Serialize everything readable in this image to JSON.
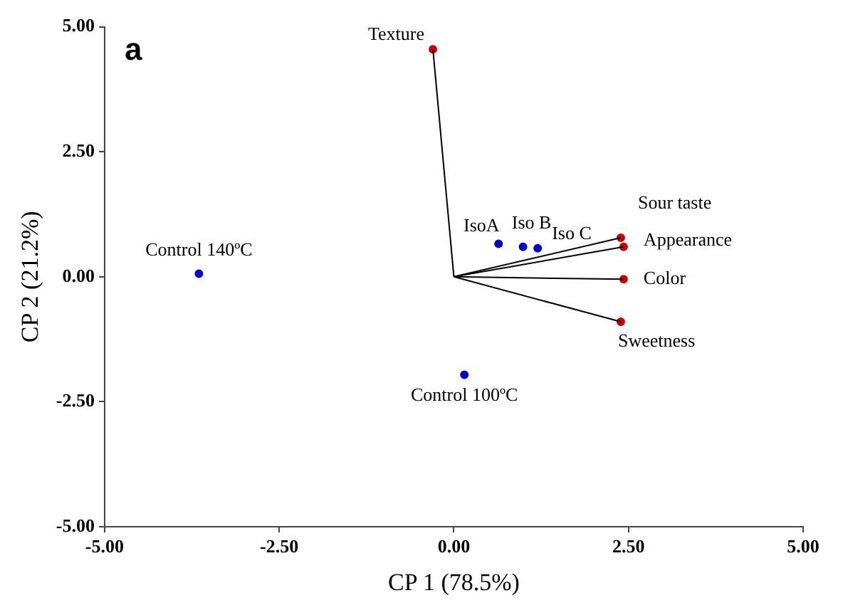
{
  "chart_data": {
    "type": "scatter",
    "title": "a",
    "xlabel": "CP 1 (78.5%)",
    "ylabel": "CP 2 (21.2%)",
    "xlim": [
      -5,
      5
    ],
    "ylim": [
      -5,
      5
    ],
    "xticks": [
      {
        "value": -5,
        "label": "-5.00"
      },
      {
        "value": -2.5,
        "label": "-2.50"
      },
      {
        "value": 0,
        "label": "0.00"
      },
      {
        "value": 2.5,
        "label": "2.50"
      },
      {
        "value": 5,
        "label": "5.00"
      }
    ],
    "yticks": [
      {
        "value": -5,
        "label": "-5.00"
      },
      {
        "value": -2.5,
        "label": "-2.50"
      },
      {
        "value": 0,
        "label": "0.00"
      },
      {
        "value": 2.5,
        "label": "2.50"
      },
      {
        "value": 5,
        "label": "5.00"
      }
    ],
    "grid": false,
    "legend": false,
    "series": [
      {
        "type": "line",
        "color": "#000000",
        "marker": "none",
        "x": [
          0,
          -0.3
        ],
        "values": [
          0,
          4.55
        ]
      },
      {
        "type": "line",
        "color": "#000000",
        "marker": "none",
        "x": [
          0,
          2.39
        ],
        "values": [
          0,
          0.78
        ]
      },
      {
        "type": "line",
        "color": "#000000",
        "marker": "none",
        "x": [
          0,
          2.43
        ],
        "values": [
          0,
          0.6
        ]
      },
      {
        "type": "line",
        "color": "#000000",
        "marker": "none",
        "x": [
          0,
          2.43
        ],
        "values": [
          0,
          -0.05
        ]
      },
      {
        "type": "line",
        "color": "#000000",
        "marker": "none",
        "x": [
          0,
          2.39
        ],
        "values": [
          0,
          -0.9
        ]
      },
      {
        "color": "#cc0000",
        "marker": "circle",
        "x": [
          -0.3,
          2.39,
          2.43,
          2.43,
          2.39
        ],
        "values": [
          4.55,
          0.78,
          0.6,
          -0.05,
          -0.9
        ]
      },
      {
        "color": "#0000cc",
        "marker": "circle",
        "x": [
          0.64,
          0.99,
          1.2,
          -3.65,
          0.15
        ],
        "values": [
          0.66,
          0.6,
          0.57,
          0.06,
          -1.96
        ]
      }
    ],
    "annotations": [
      {
        "text": "Texture",
        "x": -0.3,
        "y": 4.55
      },
      {
        "text": "Sour taste",
        "x": 2.39,
        "y": 0.78
      },
      {
        "text": "Appearance",
        "x": 2.43,
        "y": 0.6
      },
      {
        "text": "Color",
        "x": 2.43,
        "y": -0.05
      },
      {
        "text": "Sweetness",
        "x": 2.39,
        "y": -0.9
      },
      {
        "text": "IsoA",
        "x": 0.64,
        "y": 0.66
      },
      {
        "text": "Iso B",
        "x": 0.99,
        "y": 0.6
      },
      {
        "text": "Iso C",
        "x": 1.2,
        "y": 0.57
      },
      {
        "text": "Control 140ºC",
        "x": -3.65,
        "y": 0.06
      },
      {
        "text": "Control 100ºC",
        "x": 0.15,
        "y": -1.96
      }
    ]
  }
}
